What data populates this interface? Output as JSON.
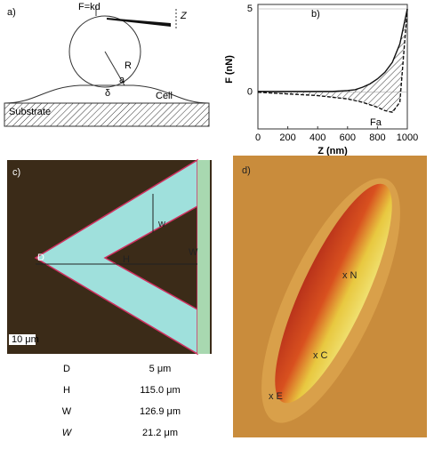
{
  "panel_a": {
    "label": "a)",
    "force": "F=kd",
    "z": "Z",
    "radius": "R",
    "contact": "a",
    "indent": "δ",
    "cell": "Cell",
    "substrate": "Substrate"
  },
  "chart_data": {
    "type": "line",
    "label": "b)",
    "x_label": "Z (nm)",
    "y_label": "F (nN)",
    "annotation": "Fa",
    "x": [
      0,
      100,
      200,
      300,
      400,
      500,
      600,
      650,
      700,
      750,
      800,
      850,
      900,
      950,
      1000
    ],
    "series": [
      {
        "name": "approach",
        "color": "#111111",
        "values": [
          0.05,
          0.05,
          0.05,
          0.05,
          0.05,
          0.05,
          0.1,
          0.15,
          0.3,
          0.5,
          0.8,
          1.2,
          1.8,
          2.9,
          5
        ]
      },
      {
        "name": "retract",
        "color": "#111111",
        "values": [
          0,
          -0.05,
          -0.1,
          -0.15,
          -0.2,
          -0.3,
          -0.4,
          -0.5,
          -0.6,
          -0.75,
          -0.9,
          -1.1,
          -1.2,
          -0.6,
          5
        ]
      }
    ],
    "xlim": [
      0,
      1000
    ],
    "xticks": [
      0,
      200,
      400,
      600,
      800,
      1000
    ],
    "ylim": [
      -2.2,
      5
    ],
    "yticks": [
      0,
      5
    ]
  },
  "panel_c": {
    "label": "c)",
    "d": "D",
    "h": "H",
    "w_outer": "W",
    "w_arm": "w",
    "scale": "10 μm"
  },
  "table": {
    "rows": [
      [
        "D",
        "5 μm"
      ],
      [
        "H",
        "115.0 μm"
      ],
      [
        "W",
        "126.9 μm"
      ],
      [
        "W",
        "21.2 μm"
      ]
    ]
  },
  "panel_d": {
    "label": "d)",
    "nucleus": "x N",
    "center": "x C",
    "edge": "x E"
  }
}
